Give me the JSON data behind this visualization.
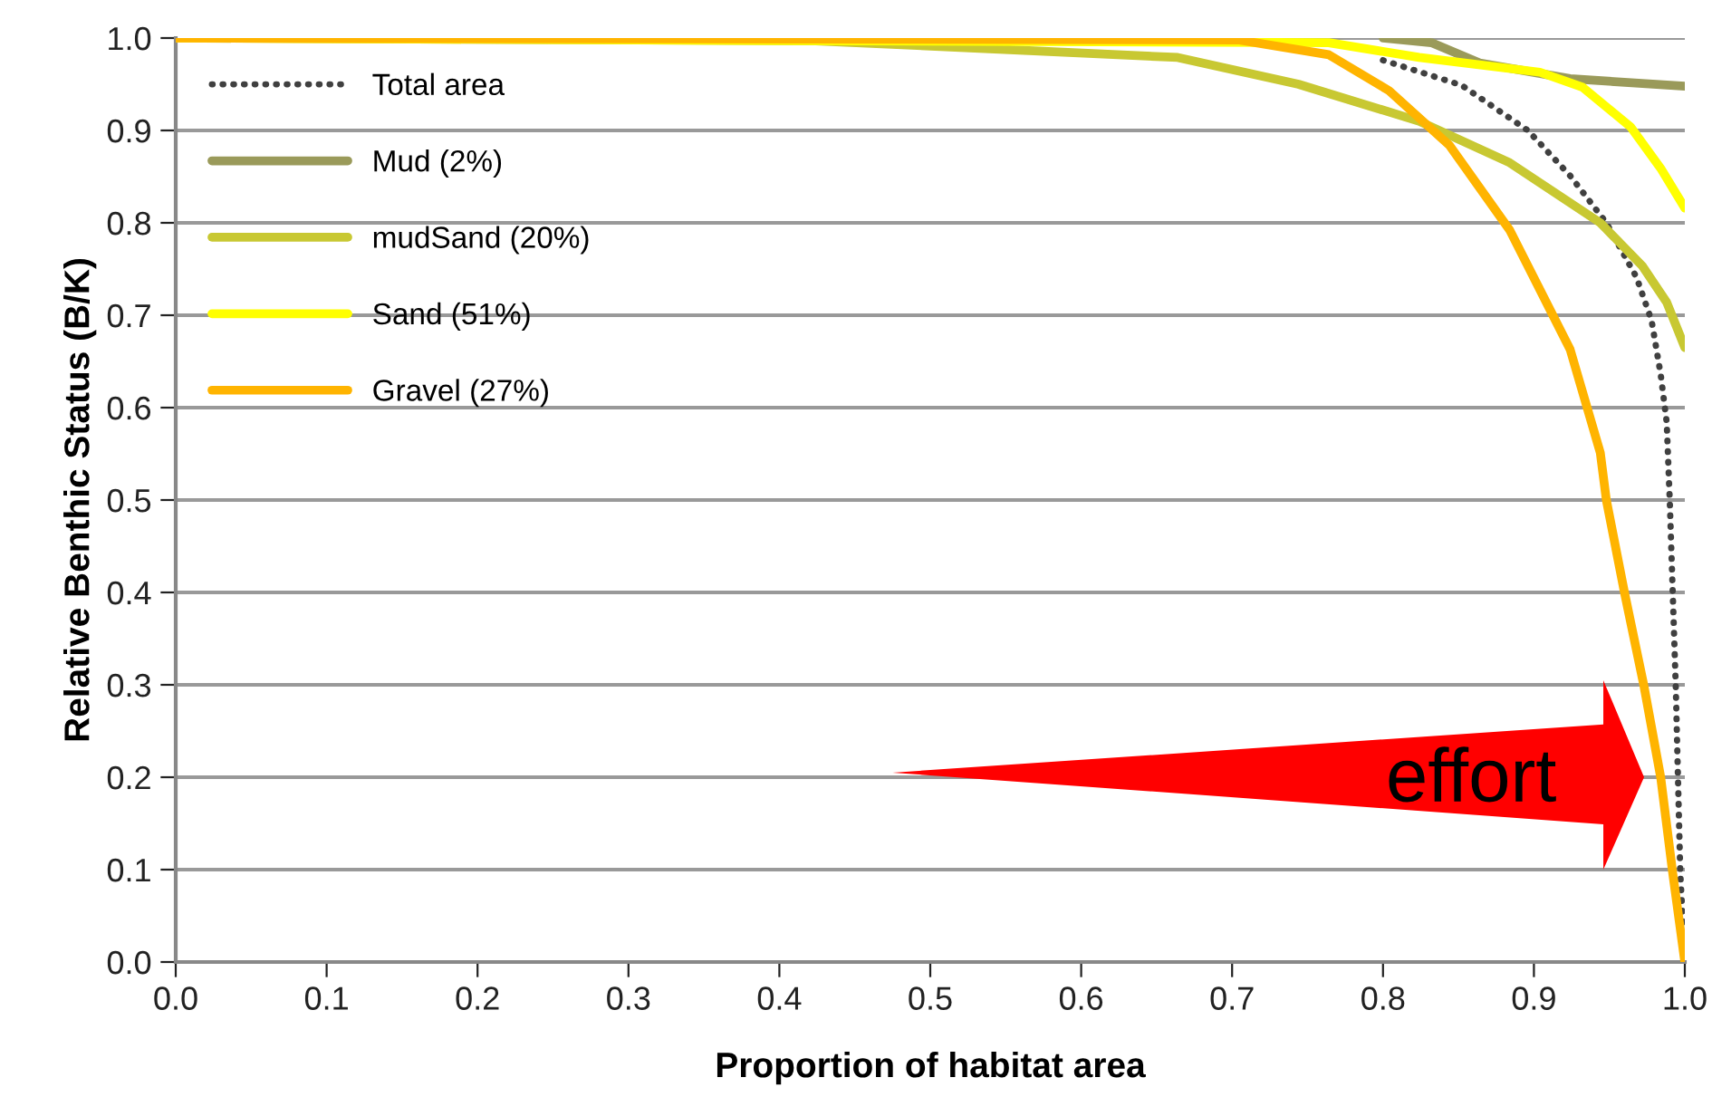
{
  "chart_data": {
    "type": "line",
    "xlabel": "Proportion of habitat area",
    "ylabel": "Relative Benthic Status (B/K)",
    "xlim": [
      0.0,
      1.0
    ],
    "xticks": [
      {
        "value": 0,
        "label": "0.0"
      },
      0.1,
      0.2,
      0.3,
      0.4,
      0.5,
      0.6,
      0.7,
      0.8,
      0.9,
      {
        "value": 1,
        "label": "1.0"
      }
    ],
    "ylim": [
      0.0,
      1.0
    ],
    "yticks": [
      {
        "value": 0,
        "label": "0.0"
      },
      0.1,
      0.2,
      0.3,
      0.4,
      0.5,
      0.6,
      0.7,
      0.8,
      0.9,
      {
        "value": 1,
        "label": "1.0"
      }
    ],
    "grid": "y",
    "legend": "top left",
    "marker": "none",
    "annotations": [
      "effort"
    ],
    "series": [
      {
        "name": "Total area",
        "color": "#404040",
        "line_style": "dotted",
        "x": [
          0.8,
          0.852,
          0.896,
          0.924,
          0.948,
          0.968,
          0.978,
          0.984,
          0.988,
          0.99,
          0.994,
          0.997,
          1.0
        ],
        "values": [
          0.976,
          0.949,
          0.9,
          0.851,
          0.8,
          0.741,
          0.694,
          0.636,
          0.584,
          0.5,
          0.298,
          0.096,
          0.0
        ]
      },
      {
        "name": "Mud (2%)",
        "color": "#9a9a5a",
        "line_style": "solid",
        "x": [
          0.8,
          0.832,
          0.864,
          0.924,
          1.0
        ],
        "values": [
          1.0,
          0.995,
          0.973,
          0.956,
          0.948
        ]
      },
      {
        "name": "mudSand (20%)",
        "color": "#c8c832",
        "line_style": "solid",
        "x": [
          0.0,
          0.424,
          0.664,
          0.744,
          0.824,
          0.884,
          0.944,
          0.972,
          0.988,
          1.0
        ],
        "values": [
          1.0,
          0.997,
          0.979,
          0.95,
          0.91,
          0.865,
          0.8,
          0.753,
          0.714,
          0.665
        ]
      },
      {
        "name": "Sand (51%)",
        "color": "#ffff00",
        "line_style": "solid",
        "x": [
          0.0,
          0.764,
          0.824,
          0.904,
          0.932,
          0.964,
          0.984,
          1.0
        ],
        "values": [
          1.0,
          0.995,
          0.979,
          0.963,
          0.947,
          0.904,
          0.859,
          0.816
        ]
      },
      {
        "name": "Gravel (27%)",
        "color": "#ffb400",
        "line_style": "solid",
        "x": [
          0.0,
          0.704,
          0.764,
          0.804,
          0.844,
          0.884,
          0.924,
          0.944,
          0.948,
          0.96,
          0.973,
          0.984,
          0.992,
          1.0
        ],
        "values": [
          1.0,
          0.998,
          0.982,
          0.943,
          0.884,
          0.792,
          0.663,
          0.551,
          0.5,
          0.4,
          0.298,
          0.2,
          0.096,
          0.0
        ]
      }
    ]
  }
}
